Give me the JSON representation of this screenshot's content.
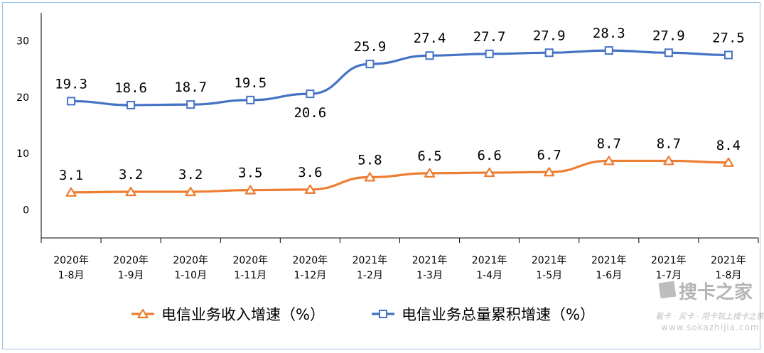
{
  "chart_data": {
    "type": "line",
    "categories": [
      [
        "2020年",
        "1-8月"
      ],
      [
        "2020年",
        "1-9月"
      ],
      [
        "2020年",
        "1-10月"
      ],
      [
        "2020年",
        "1-11月"
      ],
      [
        "2020年",
        "1-12月"
      ],
      [
        "2021年",
        "1-2月"
      ],
      [
        "2021年",
        "1-3月"
      ],
      [
        "2021年",
        "1-4月"
      ],
      [
        "2021年",
        "1-5月"
      ],
      [
        "2021年",
        "1-6月"
      ],
      [
        "2021年",
        "1-7月"
      ],
      [
        "2021年",
        "1-8月"
      ]
    ],
    "yticks": [
      "0",
      "10",
      "20",
      "30"
    ],
    "ylim": [
      -5,
      35
    ],
    "series": [
      {
        "name": "电信业务收入增速（%）",
        "color": "#ed7d31",
        "marker": "triangle",
        "values": [
          3.1,
          3.2,
          3.2,
          3.5,
          3.6,
          5.8,
          6.5,
          6.6,
          6.7,
          8.7,
          8.7,
          8.4
        ],
        "labels": [
          "3.1",
          "3.2",
          "3.2",
          "3.5",
          "3.6",
          "5.8",
          "6.5",
          "6.6",
          "6.7",
          "8.7",
          "8.7",
          "8.4"
        ]
      },
      {
        "name": "电信业务总量累积增速（%）",
        "color": "#4472c4",
        "marker": "square",
        "values": [
          19.3,
          18.6,
          18.7,
          19.5,
          20.6,
          25.9,
          27.4,
          27.7,
          27.9,
          28.3,
          27.9,
          27.5
        ],
        "labels": [
          "19.3",
          "18.6",
          "18.7",
          "19.5",
          "20.6",
          "25.9",
          "27.4",
          "27.7",
          "27.9",
          "28.3",
          "27.9",
          "27.5"
        ]
      }
    ],
    "legend_position": "bottom",
    "grid": false
  },
  "watermark": {
    "brand": "搜卡之家",
    "tagline": "看卡 · 买卡 · 用卡就上搜卡之家",
    "url": "www.sokazhijia.com"
  }
}
